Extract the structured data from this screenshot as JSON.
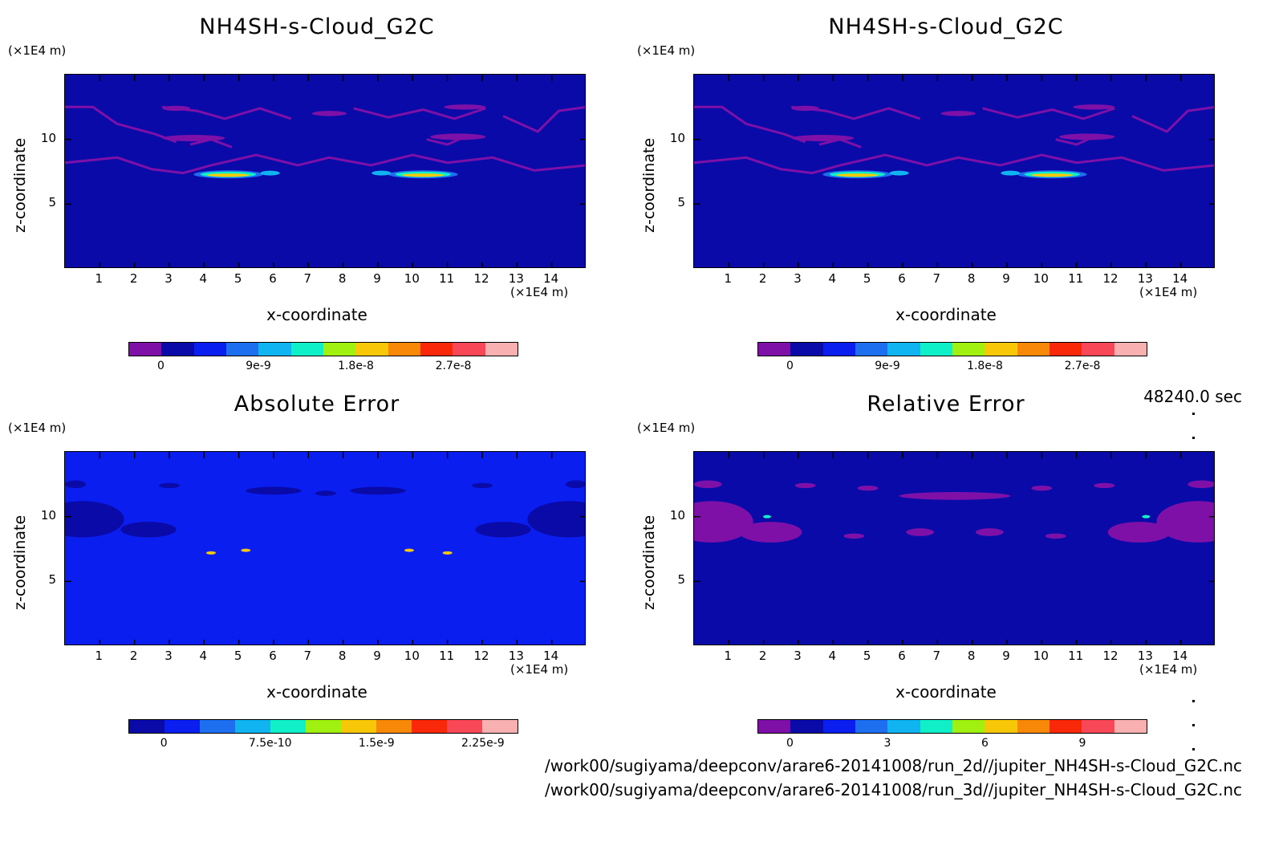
{
  "time_label": "48240.0 sec",
  "paths": [
    "/work00/sugiyama/deepconv/arare6-20141008/run_2d//jupiter_NH4SH-s-Cloud_G2C.nc",
    "/work00/sugiyama/deepconv/arare6-20141008/run_3d//jupiter_NH4SH-s-Cloud_G2C.nc"
  ],
  "colors": {
    "background_deep": "#0a0aa8",
    "background_abs": "#0a1ef0",
    "purple": "#7e10a8"
  },
  "chart_data": [
    {
      "type": "heatmap",
      "title": "NH4SH-s-Cloud_G2C",
      "xlabel": "x-coordinate",
      "ylabel": "z-coordinate",
      "x_unit": "(×1E4 m)",
      "y_unit": "(×1E4 m)",
      "x_ticks": [
        "1",
        "2",
        "3",
        "4",
        "5",
        "6",
        "7",
        "8",
        "9",
        "10",
        "11",
        "12",
        "13",
        "14"
      ],
      "y_ticks": [
        "5",
        "10"
      ],
      "xlim": [
        0,
        15
      ],
      "ylim": [
        0,
        15
      ],
      "colorbar_ticks": [
        "0",
        "9e-9",
        "1.8e-8",
        "2.7e-8"
      ],
      "colorbar_colors": [
        "#7e10a8",
        "#0a0aa8",
        "#0a1ef0",
        "#1e6ef0",
        "#10b4f0",
        "#10f0c8",
        "#a0f010",
        "#f8c808",
        "#f88808",
        "#f82808",
        "#f84858",
        "#f8b0b0"
      ]
    },
    {
      "type": "heatmap",
      "title": "NH4SH-s-Cloud_G2C",
      "xlabel": "x-coordinate",
      "ylabel": "z-coordinate",
      "x_unit": "(×1E4 m)",
      "y_unit": "(×1E4 m)",
      "x_ticks": [
        "1",
        "2",
        "3",
        "4",
        "5",
        "6",
        "7",
        "8",
        "9",
        "10",
        "11",
        "12",
        "13",
        "14"
      ],
      "y_ticks": [
        "5",
        "10"
      ],
      "xlim": [
        0,
        15
      ],
      "ylim": [
        0,
        15
      ],
      "colorbar_ticks": [
        "0",
        "9e-9",
        "1.8e-8",
        "2.7e-8"
      ],
      "colorbar_colors": [
        "#7e10a8",
        "#0a0aa8",
        "#0a1ef0",
        "#1e6ef0",
        "#10b4f0",
        "#10f0c8",
        "#a0f010",
        "#f8c808",
        "#f88808",
        "#f82808",
        "#f84858",
        "#f8b0b0"
      ]
    },
    {
      "type": "heatmap",
      "title": "Absolute Error",
      "xlabel": "x-coordinate",
      "ylabel": "z-coordinate",
      "x_unit": "(×1E4 m)",
      "y_unit": "(×1E4 m)",
      "x_ticks": [
        "1",
        "2",
        "3",
        "4",
        "5",
        "6",
        "7",
        "8",
        "9",
        "10",
        "11",
        "12",
        "13",
        "14"
      ],
      "y_ticks": [
        "5",
        "10"
      ],
      "xlim": [
        0,
        15
      ],
      "ylim": [
        0,
        15
      ],
      "colorbar_ticks": [
        "0",
        "7.5e-10",
        "1.5e-9",
        "2.25e-9"
      ],
      "colorbar_colors": [
        "#0a0aa8",
        "#0a1ef0",
        "#1e6ef0",
        "#10b4f0",
        "#10f0c8",
        "#a0f010",
        "#f8c808",
        "#f88808",
        "#f82808",
        "#f84858",
        "#f8b0b0"
      ]
    },
    {
      "type": "heatmap",
      "title": "Relative Error",
      "xlabel": "x-coordinate",
      "ylabel": "z-coordinate",
      "x_unit": "(×1E4 m)",
      "y_unit": "(×1E4 m)",
      "x_ticks": [
        "1",
        "2",
        "3",
        "4",
        "5",
        "6",
        "7",
        "8",
        "9",
        "10",
        "11",
        "12",
        "13",
        "14"
      ],
      "y_ticks": [
        "5",
        "10"
      ],
      "xlim": [
        0,
        15
      ],
      "ylim": [
        0,
        15
      ],
      "colorbar_ticks": [
        "0",
        "3",
        "6",
        "9"
      ],
      "colorbar_colors": [
        "#7e10a8",
        "#0a0aa8",
        "#0a1ef0",
        "#1e6ef0",
        "#10b4f0",
        "#10f0c8",
        "#a0f010",
        "#f8c808",
        "#f88808",
        "#f82808",
        "#f84858",
        "#f8b0b0"
      ]
    }
  ]
}
